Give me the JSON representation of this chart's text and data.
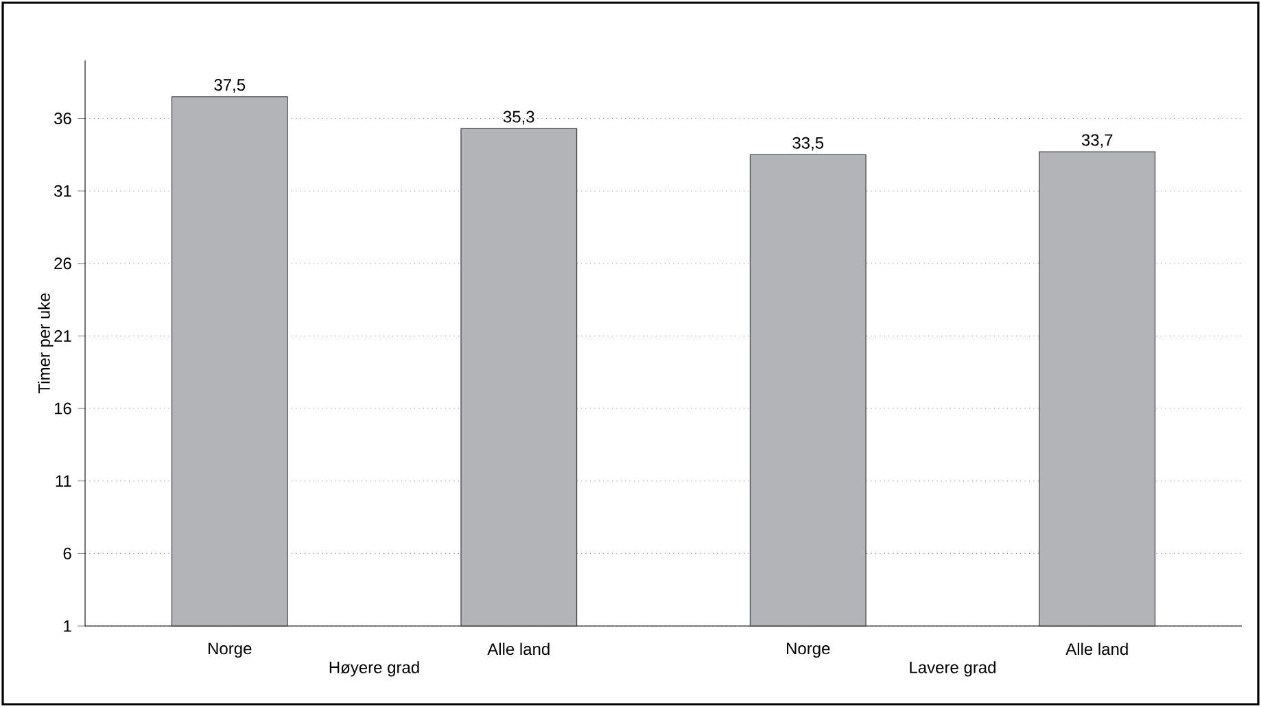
{
  "chart_data": {
    "type": "bar",
    "ylabel": "Timer per uke",
    "categories": [
      "Norge",
      "Alle land",
      "Norge",
      "Alle land"
    ],
    "values": [
      37.5,
      35.3,
      33.5,
      33.7
    ],
    "value_labels": [
      "37,5",
      "35,3",
      "33,5",
      "33,7"
    ],
    "color": "#b2b4b8",
    "ylim": [
      1,
      40
    ],
    "yticks": [
      1,
      6,
      11,
      16,
      21,
      26,
      31,
      36
    ],
    "grid": "y",
    "annotations": [
      "Høyere grad",
      "Lavere grad"
    ]
  }
}
